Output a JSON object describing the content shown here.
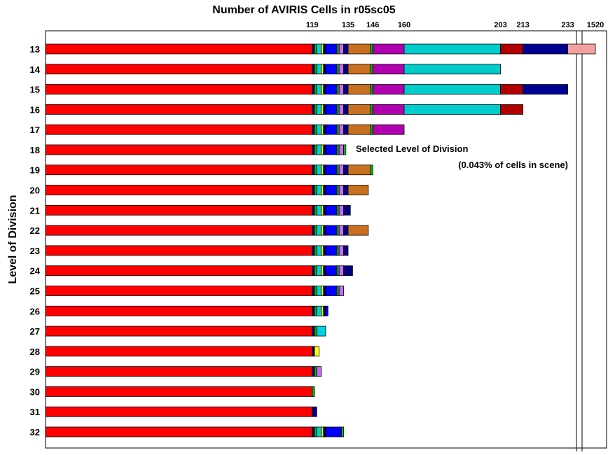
{
  "chart_data": {
    "type": "stacked-bar-horizontal",
    "title": "Number of AVIRIS Cells in r05sc05",
    "y_label": "Level of Division",
    "annotation": [
      "Selected Level of Division",
      "(0.043% of cells in scene)"
    ],
    "categories": [
      "13",
      "14",
      "15",
      "16",
      "17",
      "18",
      "19",
      "20",
      "21",
      "22",
      "23",
      "24",
      "25",
      "26",
      "27",
      "28",
      "29",
      "30",
      "31",
      "32"
    ],
    "xlim": [
      0,
      1520
    ],
    "axis_break": [
      236,
      1515
    ],
    "xticks": [
      119,
      135,
      146,
      160,
      203,
      213,
      233,
      1520
    ],
    "series": [
      {
        "color": "#ff0000",
        "values": [
          119,
          119,
          119,
          119,
          119,
          119,
          119,
          119,
          119,
          119,
          119,
          119,
          119,
          119,
          119,
          119,
          119,
          119,
          119,
          119
        ]
      },
      {
        "color": "#000080",
        "values": [
          1,
          1,
          1,
          1,
          1,
          1,
          1,
          1,
          1,
          1,
          1,
          1,
          1,
          1,
          1,
          1,
          1,
          null,
          2,
          1
        ]
      },
      {
        "color": "#00c000",
        "values": [
          1,
          1,
          1,
          1,
          1,
          1,
          1,
          1,
          1,
          1,
          1,
          1,
          1,
          1,
          1,
          null,
          1,
          1,
          null,
          1
        ]
      },
      {
        "color": "#00d0e0",
        "values": [
          2,
          2,
          2,
          2,
          2,
          2,
          2,
          2,
          2,
          2,
          2,
          2,
          2,
          2,
          4,
          null,
          null,
          null,
          null,
          2
        ]
      },
      {
        "color": "#ffff00",
        "values": [
          1,
          1,
          1,
          1,
          1,
          1,
          1,
          1,
          1,
          1,
          1,
          1,
          1,
          1,
          null,
          2,
          null,
          null,
          null,
          1
        ]
      },
      {
        "color": "#000080",
        "values": [
          1,
          1,
          1,
          1,
          1,
          1,
          1,
          1,
          1,
          1,
          1,
          1,
          1,
          1,
          null,
          null,
          null,
          null,
          null,
          1
        ]
      },
      {
        "color": "#0000ff",
        "values": [
          5,
          5,
          5,
          5,
          5,
          5,
          5,
          5,
          5,
          5,
          5,
          5,
          5,
          1,
          null,
          null,
          null,
          null,
          null,
          7
        ]
      },
      {
        "color": "#00c000",
        "values": [
          1,
          1,
          1,
          1,
          1,
          1,
          1,
          1,
          1,
          1,
          1,
          1,
          1,
          null,
          null,
          null,
          null,
          null,
          null,
          1
        ]
      },
      {
        "color": "#cc66ff",
        "values": [
          2,
          2,
          2,
          2,
          2,
          2,
          2,
          2,
          2,
          2,
          2,
          2,
          2,
          null,
          null,
          null,
          2,
          null,
          null,
          null
        ]
      },
      {
        "color": "#000080",
        "values": [
          2,
          2,
          2,
          2,
          2,
          null,
          2,
          2,
          3,
          2,
          2,
          4,
          null,
          null,
          null,
          null,
          null,
          null,
          null,
          null
        ]
      },
      {
        "color": "#c87020",
        "values": [
          10,
          10,
          10,
          10,
          10,
          null,
          10,
          9,
          null,
          9,
          null,
          null,
          null,
          null,
          null,
          null,
          null,
          null,
          null,
          null
        ]
      },
      {
        "color": "#00c000",
        "values": [
          1,
          1,
          1,
          1,
          1,
          1,
          1,
          null,
          null,
          null,
          null,
          null,
          null,
          null,
          null,
          null,
          null,
          null,
          null,
          null
        ]
      },
      {
        "color": "#b000b0",
        "values": [
          14,
          14,
          14,
          14,
          14,
          null,
          null,
          null,
          null,
          null,
          null,
          null,
          null,
          null,
          null,
          null,
          null,
          null,
          null,
          null
        ]
      },
      {
        "color": "#00cccc",
        "values": [
          43,
          43,
          43,
          43,
          null,
          null,
          null,
          null,
          null,
          null,
          null,
          null,
          null,
          null,
          null,
          null,
          null,
          null,
          null,
          null
        ]
      },
      {
        "color": "#b00000",
        "values": [
          10,
          null,
          10,
          10,
          null,
          null,
          null,
          null,
          null,
          null,
          null,
          null,
          null,
          null,
          null,
          null,
          null,
          null,
          null,
          null
        ]
      },
      {
        "color": "#000090",
        "values": [
          20,
          null,
          20,
          null,
          null,
          null,
          null,
          null,
          null,
          null,
          null,
          null,
          null,
          null,
          null,
          null,
          null,
          null,
          null,
          null
        ]
      },
      {
        "color": "#f4a0a0",
        "values": [
          1287,
          null,
          null,
          null,
          null,
          null,
          null,
          null,
          null,
          null,
          null,
          null,
          null,
          null,
          null,
          null,
          null,
          null,
          null,
          null
        ]
      }
    ]
  }
}
